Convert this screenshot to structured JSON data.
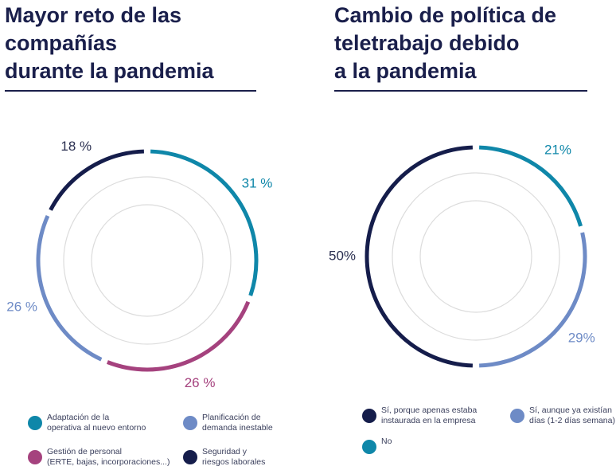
{
  "chart_data": [
    {
      "type": "pie",
      "title": "Mayor reto de las\ncompañías\ndurante la pandemia",
      "categories": [
        "Adaptación de la\noperativa al nuevo entorno",
        "Gestión de personal\n(ERTE, bajas, incorporaciones...)",
        "Planificación de\ndemanda inestable",
        "Seguridad y\nriesgos laborales"
      ],
      "values": [
        31,
        26,
        26,
        18
      ],
      "value_labels": [
        "31 %",
        "26 %",
        "26 %",
        "18 %"
      ],
      "colors": [
        "#0f87a9",
        "#a5427e",
        "#6e8bc6",
        "#151d4b"
      ]
    },
    {
      "type": "pie",
      "title": "Cambio de política de\nteletrabajo debido\na la pandemia",
      "categories": [
        "No",
        "Sí, aunque ya existían\ndías (1-2 días semana)",
        "Sí, porque apenas estaba\ninstaurada en la empresa"
      ],
      "values": [
        21,
        29,
        50
      ],
      "value_labels": [
        "21%",
        "29%",
        "50%"
      ],
      "colors": [
        "#0f87a9",
        "#6e8bc6",
        "#151d4b"
      ]
    }
  ]
}
